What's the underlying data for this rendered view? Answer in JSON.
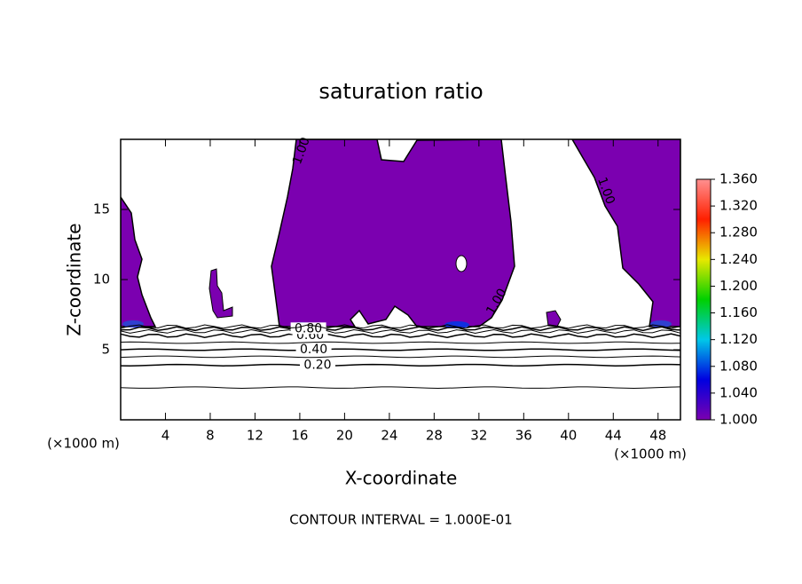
{
  "chart_data": {
    "type": "contour",
    "title": "saturation ratio",
    "xlabel": "X-coordinate",
    "ylabel": "Z-coordinate",
    "x_unit": "(×1000 m)",
    "y_unit": "(×1000 m)",
    "footnote": "CONTOUR INTERVAL = 1.000E-01",
    "xlim": [
      0,
      50
    ],
    "xticks": [
      4,
      8,
      12,
      16,
      20,
      24,
      28,
      32,
      36,
      40,
      44,
      48
    ],
    "ylim": [
      0,
      20
    ],
    "yticks": [
      5,
      10,
      15
    ],
    "fill_color": "#7b00b0",
    "contours": [
      {
        "level": 0.1,
        "height": 2.3
      },
      {
        "level": 0.2,
        "height": 3.9,
        "label": "0.20"
      },
      {
        "level": 0.3,
        "height": 4.5
      },
      {
        "level": 0.4,
        "height": 5.0,
        "label": "0.40"
      },
      {
        "level": 0.5,
        "height": 5.5
      },
      {
        "level": 0.6,
        "height": 6.0,
        "label": "0.60"
      },
      {
        "level": 0.7,
        "height": 6.3
      },
      {
        "level": 0.8,
        "height": 6.5,
        "label": "0.80"
      },
      {
        "level": 0.9,
        "height": 6.65
      },
      {
        "level": 1.0,
        "label": "1.00"
      }
    ],
    "colorbar_lim": [
      1.0,
      1.36
    ],
    "colorbar_ticks": [
      {
        "value": 1.0,
        "label": "1.000"
      },
      {
        "value": 1.04,
        "label": "1.040"
      },
      {
        "value": 1.08,
        "label": "1.080"
      },
      {
        "value": 1.12,
        "label": "1.120"
      },
      {
        "value": 1.16,
        "label": "1.160"
      },
      {
        "value": 1.2,
        "label": "1.200"
      },
      {
        "value": 1.24,
        "label": "1.240"
      },
      {
        "value": 1.28,
        "label": "1.280"
      },
      {
        "value": 1.32,
        "label": "1.320"
      },
      {
        "value": 1.36,
        "label": "1.360"
      }
    ],
    "colorbar_colors": [
      "#7b00b0",
      "#0000e0",
      "#00c8e8",
      "#00d000",
      "#e8e800",
      "#ff2000",
      "#ff9090"
    ]
  }
}
